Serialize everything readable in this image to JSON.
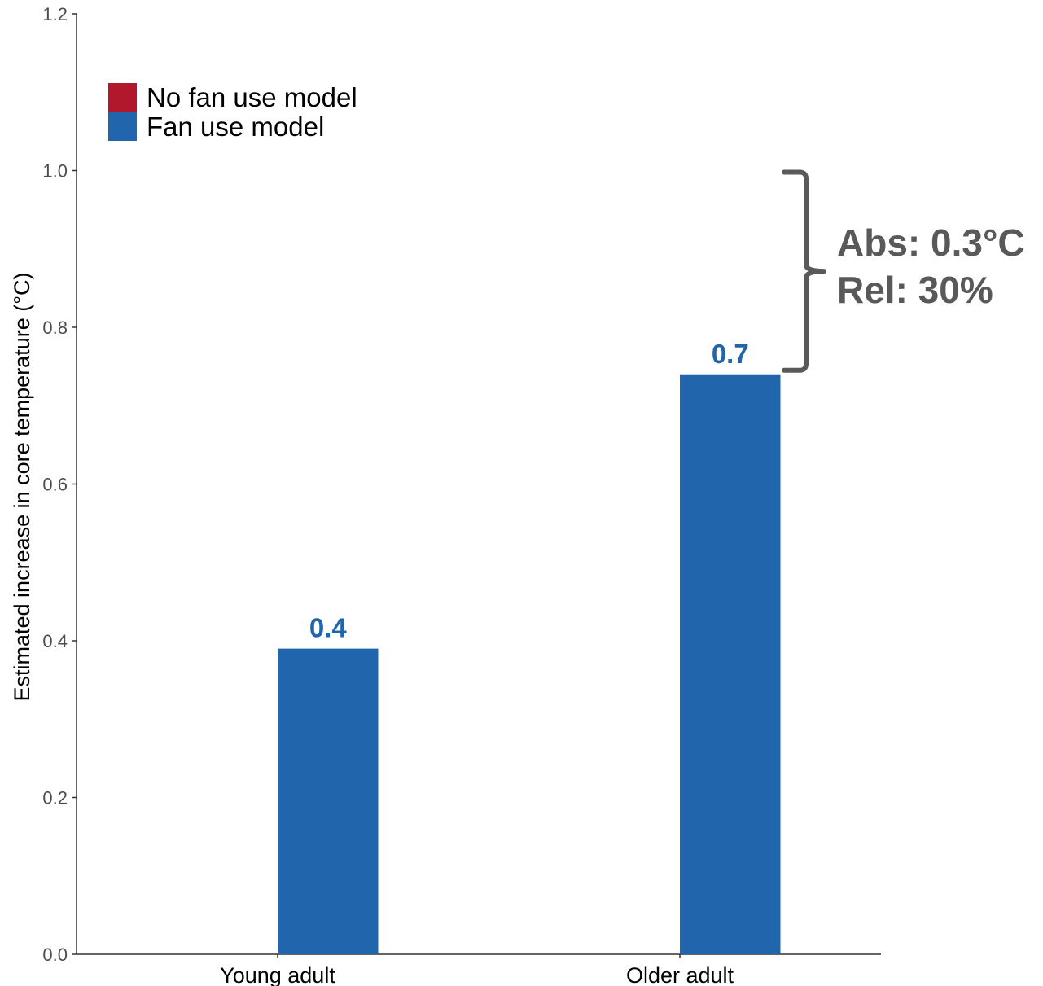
{
  "chart_data": {
    "type": "bar",
    "categories": [
      "Young adult",
      "Older adult"
    ],
    "series": [
      {
        "name": "No fan use model",
        "color": "#b2182b",
        "values": [
          null,
          null
        ]
      },
      {
        "name": "Fan use model",
        "color": "#2166ac",
        "values": [
          0.39,
          0.74
        ]
      }
    ],
    "data_labels": [
      "0.4",
      "0.7"
    ],
    "title": "",
    "xlabel": "",
    "ylabel": "Estimated increase in core temperature (°C)",
    "ylim": [
      0,
      1.2
    ],
    "yticks": [
      0,
      0.2,
      0.4,
      0.6,
      0.8,
      1.0,
      1.2
    ],
    "ytick_labels": [
      "0.0",
      "0.2",
      "0.4",
      "0.6",
      "0.8",
      "1.0",
      "1.2"
    ],
    "grid": false,
    "legend_position": "top-left",
    "annotation": {
      "lines": [
        "Abs: 0.3°C",
        "Rel: 30%"
      ],
      "color": "#595959",
      "bracket_range": [
        0.74,
        1.0
      ]
    }
  }
}
